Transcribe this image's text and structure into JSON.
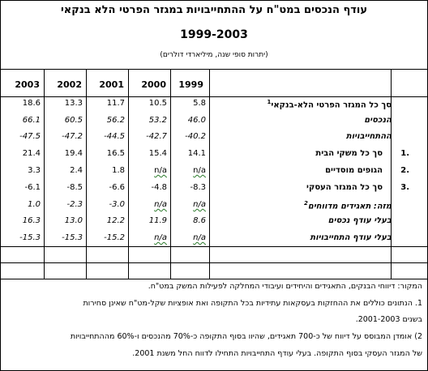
{
  "title": "עודף הנכסים במט\"ח על ההתחייבויות במגזר הפרטי הלא בנקאי",
  "years_range": "1999-2003",
  "subtitle": "(יתרות סופי שנה, מיליארדי דולרים)",
  "years": [
    "1999",
    "2000",
    "2001",
    "2002",
    "2003"
  ],
  "rows": [
    {
      "index": "",
      "label": "סך כל המגזר הפרטי הלא-בנקאי",
      "sup": "1",
      "italic": false,
      "values": [
        "5.8",
        "10.5",
        "11.7",
        "13.3",
        "18.6"
      ]
    },
    {
      "index": "",
      "label": "הנכסים",
      "sup": "",
      "italic": true,
      "values": [
        "46.0",
        "53.2",
        "56.2",
        "60.5",
        "66.1"
      ]
    },
    {
      "index": "",
      "label": "ההתחייבויות",
      "sup": "",
      "italic": true,
      "values": [
        "-40.2",
        "-42.7",
        "-44.5",
        "-47.2",
        "-47.5"
      ]
    },
    {
      "index": "1.",
      "label": "סך כל משקי הבית",
      "sup": "",
      "italic": false,
      "values": [
        "14.1",
        "15.4",
        "16.5",
        "19.4",
        "21.4"
      ]
    },
    {
      "index": "2.",
      "label": "הגופים מוסדיים",
      "sup": "",
      "italic": false,
      "values": [
        "n/a",
        "n/a",
        "1.8",
        "2.4",
        "3.3"
      ]
    },
    {
      "index": "3.",
      "label": "סך כל המגזר העסקי",
      "sup": "",
      "italic": false,
      "values": [
        "-8.3",
        "-4.8",
        "-6.6",
        "-8.5",
        "-6.1"
      ]
    },
    {
      "index": "",
      "label": "מזה: תאגידים מדווחים",
      "sup": "2",
      "italic": true,
      "values": [
        "n/a",
        "n/a",
        "-3.0",
        "-2.3",
        "1.0"
      ]
    },
    {
      "index": "",
      "label": "בעלי עודף נכסים",
      "sup": "",
      "italic": true,
      "values": [
        "8.6",
        "11.9",
        "12.2",
        "13.0",
        "16.3"
      ]
    },
    {
      "index": "",
      "label": "בעלי עודף התחייבויות",
      "sup": "",
      "italic": true,
      "values": [
        "n/a",
        "n/a",
        "-15.2",
        "-15.3",
        "-15.3"
      ]
    }
  ],
  "notes": {
    "source": "המקור: דיווחי הבנקים, התאגידים והיחידים ועיבודי המחלקה לפעילות המשק במט\"ח.",
    "note1_line1": "1. הנתונים כוללים את ההחזקות בעסקאות עתידיות בכל התקופה ואת אופציות שקל-מט\"ח שאינן סחירות",
    "note1_line2": "בשנים 2001-2003.",
    "note2_line1": "2) אומדן המבוסס על דיווח של כ-700 תאגידים, שהיוו בסוף התקופה כ-70% מהנכסים ו-60% מההתחייבויות",
    "note2_line2": "של המגזר העסקי בסוף התקופה. בעלי עודף התחייבויות התחילו לדווח החל משנת 2001."
  }
}
